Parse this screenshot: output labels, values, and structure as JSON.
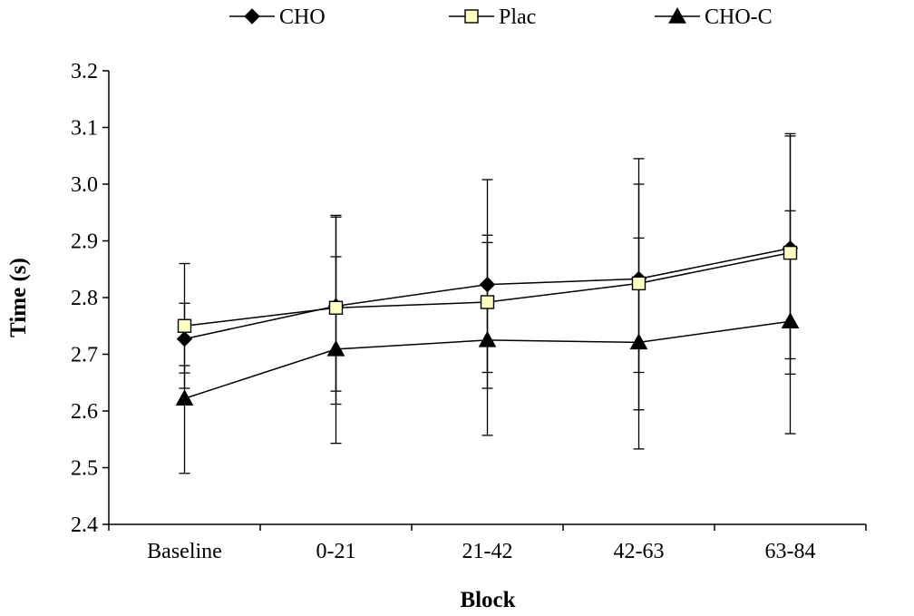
{
  "chart_data": {
    "type": "line",
    "title": "",
    "xlabel": "Block",
    "ylabel": "Time (s)",
    "categories": [
      "Baseline",
      "0-21",
      "21-42",
      "42-63",
      "63-84"
    ],
    "ylim": [
      2.4,
      3.2
    ],
    "yticks": [
      "2.4",
      "2.5",
      "2.6",
      "2.7",
      "2.8",
      "2.9",
      "3.0",
      "3.1",
      "3.2"
    ],
    "grid": false,
    "legend_position": "top",
    "series": [
      {
        "name": "CHO",
        "marker": "diamond",
        "color": "#000000",
        "values": [
          2.727,
          2.785,
          2.823,
          2.833,
          2.887
        ],
        "error_low": [
          2.667,
          2.635,
          2.64,
          2.668,
          2.692
        ],
        "error_high": [
          2.79,
          2.945,
          3.008,
          3.045,
          3.085
        ]
      },
      {
        "name": "Plac",
        "marker": "square",
        "color": "#ffffc0",
        "values": [
          2.75,
          2.782,
          2.792,
          2.825,
          2.879
        ],
        "error_low": [
          2.64,
          2.612,
          2.668,
          2.602,
          2.665
        ],
        "error_high": [
          2.86,
          2.942,
          2.91,
          3.0,
          3.089
        ]
      },
      {
        "name": "CHO-C",
        "marker": "triangle",
        "color": "#000000",
        "values": [
          2.622,
          2.709,
          2.725,
          2.721,
          2.758
        ],
        "error_low": [
          2.49,
          2.543,
          2.557,
          2.533,
          2.56
        ],
        "error_high": [
          2.68,
          2.872,
          2.897,
          2.905,
          2.953
        ]
      }
    ]
  }
}
